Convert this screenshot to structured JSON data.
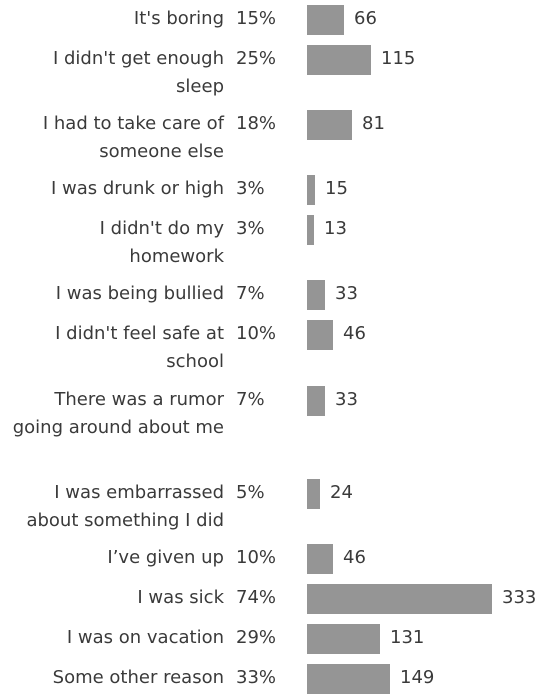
{
  "chart_data": {
    "type": "bar",
    "orientation": "horizontal",
    "bar_color": "#959595",
    "text_color": "#3a3a3a",
    "categories": [
      "It's boring",
      "I didn't get enough sleep",
      "I had to take care of someone else",
      "I was drunk or high",
      "I didn't do my homework",
      "I was being bullied",
      "I didn't feel safe at school",
      "There was a rumor going around about me",
      "I was embarrassed about something I did",
      "I’ve given up",
      "I was sick",
      "I was on vacation",
      "Some other reason"
    ],
    "percentages": [
      "15%",
      "25%",
      "18%",
      "3%",
      "3%",
      "7%",
      "10%",
      "7%",
      "5%",
      "10%",
      "74%",
      "29%",
      "33%"
    ],
    "values": [
      66,
      115,
      81,
      15,
      13,
      33,
      46,
      33,
      24,
      46,
      333,
      131,
      149
    ],
    "xlim": [
      0,
      333
    ],
    "grid": false,
    "legend": "none"
  }
}
